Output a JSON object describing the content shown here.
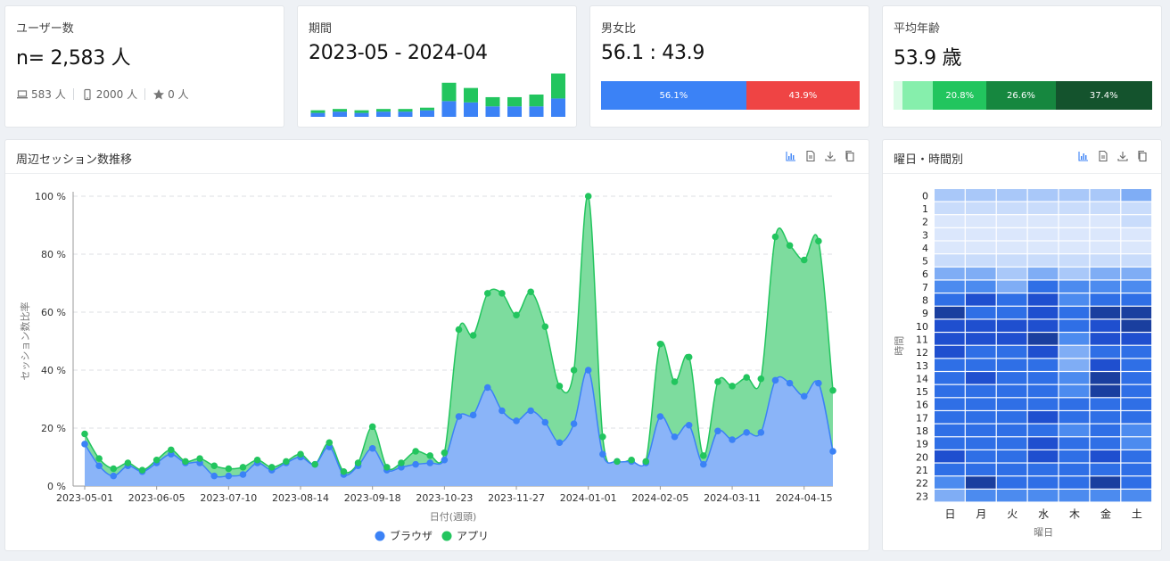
{
  "users": {
    "title": "ユーザー数",
    "value": "n= 2,583 人",
    "devices": [
      {
        "icon": "laptop-icon",
        "label": "583 人"
      },
      {
        "icon": "smartphone-icon",
        "label": "2000 人"
      },
      {
        "icon": "star-icon",
        "label": "0 人"
      }
    ]
  },
  "period": {
    "title": "期間",
    "value": "2023-05 - 2024-04",
    "mini_chart": {
      "type": "bar",
      "browser": [
        3,
        4,
        3,
        4,
        4,
        5,
        12,
        11,
        8,
        8,
        8,
        14
      ],
      "app": [
        2,
        2,
        2,
        2,
        2,
        2,
        14,
        11,
        7,
        7,
        9,
        19
      ]
    }
  },
  "gender": {
    "title": "男女比",
    "value": "56.1 : 43.9",
    "segments": [
      {
        "label": "56.1%",
        "pct": 56.1,
        "color": "#3b82f6"
      },
      {
        "label": "43.9%",
        "pct": 43.9,
        "color": "#ef4444"
      }
    ]
  },
  "age": {
    "title": "平均年齢",
    "value": "53.9 歳",
    "segments": [
      {
        "label": "",
        "pct": 3.6,
        "color": "#dcfce7"
      },
      {
        "label": "",
        "pct": 11.6,
        "color": "#86efac"
      },
      {
        "label": "20.8%",
        "pct": 20.8,
        "color": "#22c55e"
      },
      {
        "label": "26.6%",
        "pct": 26.6,
        "color": "#16873f"
      },
      {
        "label": "37.4%",
        "pct": 37.4,
        "color": "#14532d"
      }
    ]
  },
  "session_panel": {
    "title": "周辺セッション数推移",
    "tools": [
      "bar-chart-icon",
      "document-icon",
      "download-icon",
      "copy-icon"
    ]
  },
  "heat_panel": {
    "title": "曜日・時間別",
    "tools": [
      "bar-chart-icon",
      "document-icon",
      "download-icon",
      "copy-icon"
    ]
  },
  "chart_data": [
    {
      "type": "area",
      "xlabel": "日付(週頭)",
      "ylabel": "セッション数比率",
      "ylim": [
        0,
        100
      ],
      "yticks": [
        "0 %",
        "20 %",
        "40 %",
        "60 %",
        "80 %",
        "100 %"
      ],
      "xticks": [
        {
          "index": 0,
          "label": "2023-05-01"
        },
        {
          "index": 5,
          "label": "2023-06-05"
        },
        {
          "index": 10,
          "label": "2023-07-10"
        },
        {
          "index": 15,
          "label": "2023-08-14"
        },
        {
          "index": 20,
          "label": "2023-09-18"
        },
        {
          "index": 25,
          "label": "2023-10-23"
        },
        {
          "index": 30,
          "label": "2023-11-27"
        },
        {
          "index": 35,
          "label": "2024-01-01"
        },
        {
          "index": 40,
          "label": "2024-02-05"
        },
        {
          "index": 45,
          "label": "2024-03-11"
        },
        {
          "index": 50,
          "label": "2024-04-15"
        }
      ],
      "grid": true,
      "legend": "bottom",
      "series": [
        {
          "name": "ブラウザ",
          "color": "#3b82f6",
          "values": [
            14.5,
            7,
            3.5,
            7,
            5,
            8,
            11,
            8,
            8,
            3.5,
            3.5,
            4,
            8,
            5.5,
            8,
            10,
            7.5,
            13.5,
            4,
            7,
            13,
            5.5,
            6.5,
            7.5,
            8,
            9,
            24,
            24.5,
            34,
            26,
            22.5,
            26,
            22,
            15,
            21.5,
            40,
            11,
            8.5,
            8.5,
            8,
            24,
            17,
            21,
            7.5,
            19,
            16,
            18.5,
            18.5,
            36.5,
            35.5,
            31,
            35.5,
            12
          ]
        },
        {
          "name": "アプリ",
          "color": "#22c55e",
          "values": [
            18,
            9.5,
            6,
            8,
            5.5,
            9,
            12.5,
            8.5,
            9.5,
            7,
            6,
            6.5,
            9,
            6.5,
            8.5,
            11,
            7.5,
            15,
            5,
            8,
            20.5,
            6.5,
            8,
            12,
            10.5,
            11.5,
            54,
            52,
            66.5,
            66.5,
            59,
            67,
            55,
            34.5,
            40,
            100,
            17,
            8.5,
            9,
            8.5,
            49,
            36,
            44.5,
            10.5,
            36,
            34.5,
            37.5,
            37,
            86,
            83,
            78,
            84.5,
            33
          ]
        }
      ]
    },
    {
      "type": "heatmap",
      "xlabel": "曜日",
      "ylabel": "時間",
      "x": [
        "日",
        "月",
        "火",
        "水",
        "木",
        "金",
        "土"
      ],
      "y": [
        "0",
        "1",
        "2",
        "3",
        "4",
        "5",
        "6",
        "7",
        "8",
        "9",
        "10",
        "11",
        "12",
        "13",
        "14",
        "15",
        "16",
        "17",
        "18",
        "19",
        "20",
        "21",
        "22",
        "23"
      ],
      "values": [
        [
          3,
          3,
          3,
          3,
          3,
          3,
          4
        ],
        [
          2,
          2,
          2,
          2,
          2,
          2,
          2
        ],
        [
          1,
          1,
          1,
          1,
          1,
          1,
          2
        ],
        [
          1,
          1,
          1,
          1,
          1,
          1,
          1
        ],
        [
          1,
          1,
          1,
          1,
          1,
          1,
          1
        ],
        [
          2,
          2,
          2,
          2,
          2,
          2,
          2
        ],
        [
          4,
          4,
          3,
          4,
          3,
          4,
          4
        ],
        [
          5,
          5,
          4,
          6,
          5,
          5,
          5
        ],
        [
          6,
          7,
          6,
          7,
          5,
          6,
          6
        ],
        [
          8,
          6,
          6,
          7,
          6,
          8,
          8
        ],
        [
          7,
          7,
          7,
          7,
          6,
          7,
          9
        ],
        [
          7,
          7,
          7,
          8,
          5,
          7,
          7
        ],
        [
          7,
          6,
          6,
          7,
          4,
          6,
          6
        ],
        [
          6,
          6,
          6,
          6,
          4,
          7,
          6
        ],
        [
          6,
          7,
          6,
          6,
          5,
          8,
          6
        ],
        [
          6,
          6,
          6,
          6,
          5,
          8,
          6
        ],
        [
          6,
          6,
          6,
          6,
          6,
          6,
          6
        ],
        [
          6,
          6,
          6,
          7,
          6,
          6,
          6
        ],
        [
          6,
          6,
          6,
          6,
          5,
          6,
          5
        ],
        [
          6,
          6,
          6,
          7,
          6,
          6,
          5
        ],
        [
          7,
          6,
          6,
          7,
          6,
          7,
          6
        ],
        [
          6,
          6,
          6,
          6,
          6,
          6,
          6
        ],
        [
          5,
          8,
          6,
          6,
          6,
          8,
          6
        ],
        [
          4,
          5,
          5,
          5,
          5,
          5,
          5
        ]
      ]
    }
  ]
}
